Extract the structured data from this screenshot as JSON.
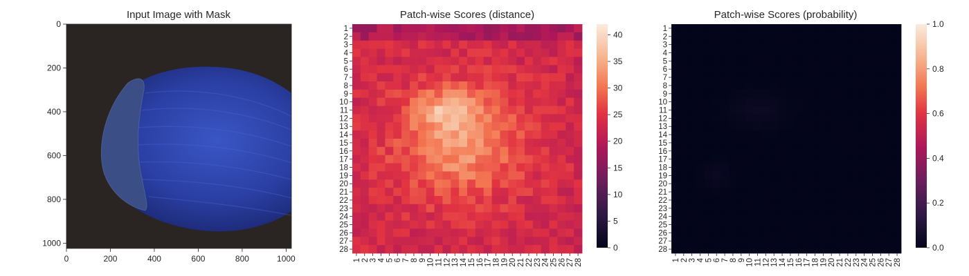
{
  "chart_data": [
    {
      "type": "image",
      "title": "Input Image with Mask",
      "x_ticks": [
        "0",
        "200",
        "400",
        "600",
        "800",
        "1000"
      ],
      "y_ticks": [
        "0",
        "200",
        "400",
        "600",
        "800",
        "1000"
      ],
      "xlim": [
        0,
        1024
      ],
      "ylim": [
        1024,
        0
      ],
      "description_colors": {
        "background": "#2b2424",
        "nut": "#2a3c9c",
        "cap": "#3a4f8a"
      }
    },
    {
      "type": "heatmap",
      "title": "Patch-wise Scores (distance)",
      "x_ticks": [
        "1",
        "2",
        "3",
        "4",
        "5",
        "6",
        "7",
        "8",
        "9",
        "10",
        "11",
        "12",
        "13",
        "14",
        "15",
        "16",
        "17",
        "18",
        "19",
        "20",
        "21",
        "22",
        "23",
        "24",
        "25",
        "26",
        "27",
        "28"
      ],
      "y_ticks": [
        "1",
        "2",
        "3",
        "4",
        "5",
        "6",
        "7",
        "8",
        "9",
        "10",
        "11",
        "12",
        "13",
        "14",
        "15",
        "16",
        "17",
        "18",
        "19",
        "20",
        "21",
        "22",
        "23",
        "24",
        "25",
        "26",
        "27",
        "28"
      ],
      "grid_size": 28,
      "value_range": [
        0,
        42
      ],
      "colorbar_ticks": [
        "0",
        "5",
        "10",
        "15",
        "20",
        "25",
        "30",
        "35",
        "40"
      ],
      "colorbar_values": [
        0,
        5,
        10,
        15,
        20,
        25,
        30,
        35,
        40
      ],
      "colormap": "rocket",
      "hot_region": {
        "center_row": 11,
        "center_col": 12,
        "peak_value": 41,
        "baseline_value": 23
      }
    },
    {
      "type": "heatmap",
      "title": "Patch-wise Scores (probability)",
      "x_ticks": [
        "1",
        "2",
        "3",
        "4",
        "5",
        "6",
        "7",
        "8",
        "9",
        "10",
        "11",
        "12",
        "13",
        "14",
        "15",
        "16",
        "17",
        "18",
        "19",
        "20",
        "21",
        "22",
        "23",
        "24",
        "25",
        "26",
        "27",
        "28"
      ],
      "y_ticks": [
        "1",
        "2",
        "3",
        "4",
        "5",
        "6",
        "7",
        "8",
        "9",
        "10",
        "11",
        "12",
        "13",
        "14",
        "15",
        "16",
        "17",
        "18",
        "19",
        "20",
        "21",
        "22",
        "23",
        "24",
        "25",
        "26",
        "27",
        "28"
      ],
      "grid_size": 28,
      "value_range": [
        0.0,
        1.0
      ],
      "colorbar_ticks": [
        "0.0",
        "0.2",
        "0.4",
        "0.6",
        "0.8",
        "1.0"
      ],
      "colorbar_values": [
        0.0,
        0.2,
        0.4,
        0.6,
        0.8,
        1.0
      ],
      "colormap": "rocket",
      "approx_max_value": 0.03
    }
  ]
}
